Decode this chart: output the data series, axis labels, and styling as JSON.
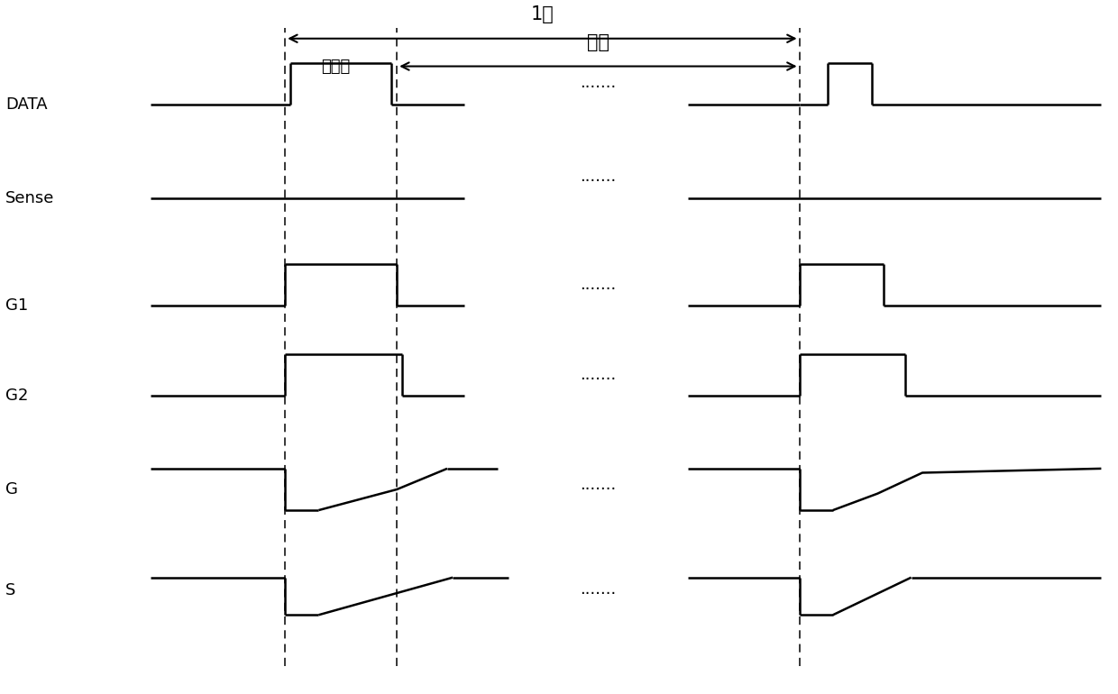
{
  "frame_label": "1帧",
  "write_label": "写数据",
  "emit_label": "发光",
  "signals": [
    "DATA",
    "Sense",
    "G1",
    "G2",
    "G",
    "S"
  ],
  "background_color": "#ffffff"
}
